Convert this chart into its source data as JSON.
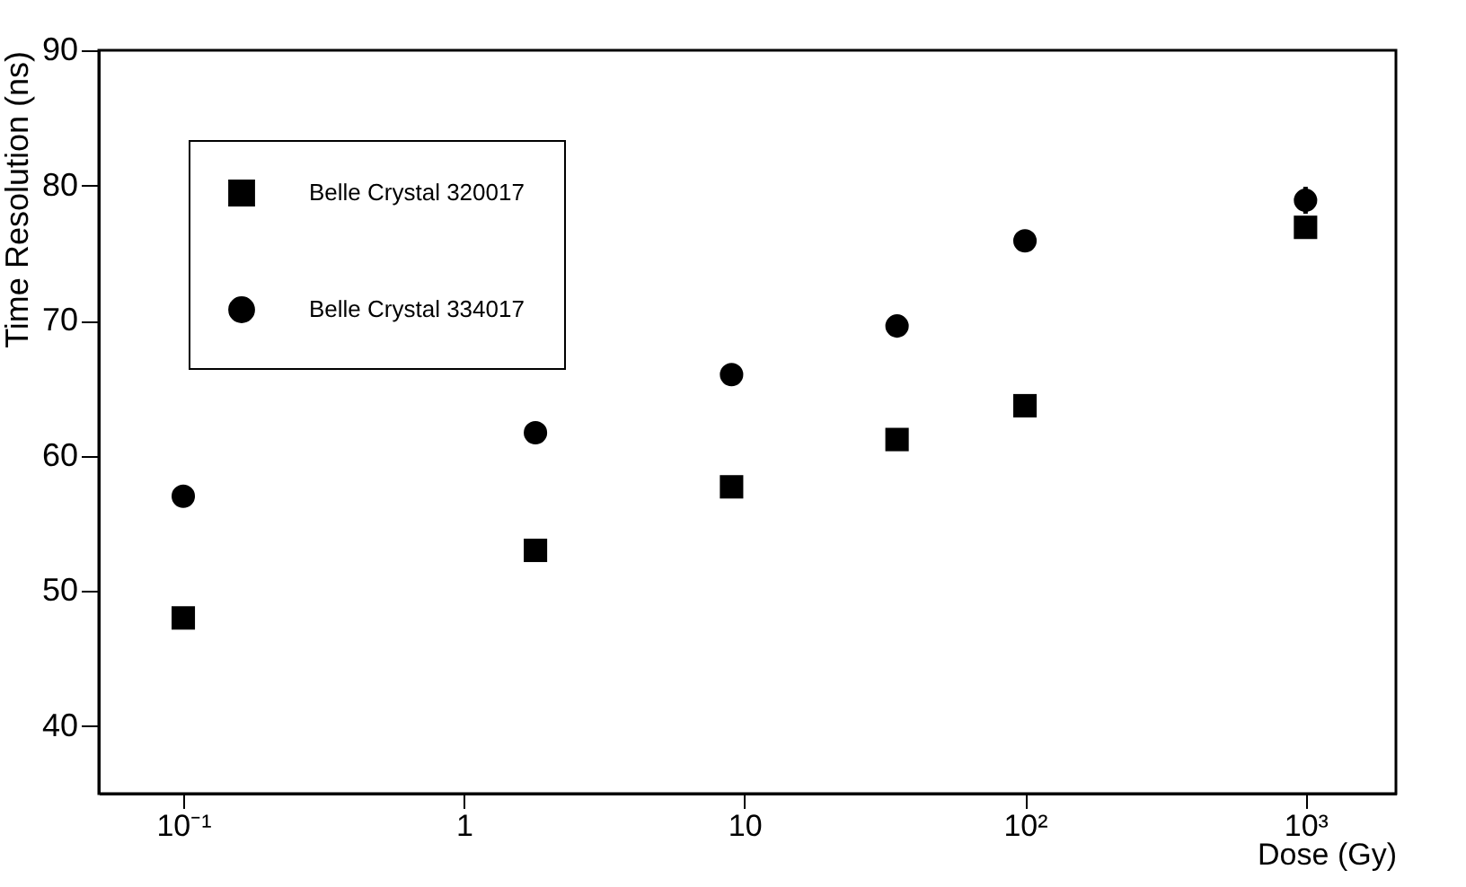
{
  "chart_data": {
    "type": "scatter",
    "xlabel": "Dose (Gy)",
    "ylabel": "Time Resolution (ns)",
    "log": "x",
    "grid": false,
    "legend": "top left",
    "xlim": [
      0.05,
      2100
    ],
    "ylim": [
      35,
      90
    ],
    "xticks": [
      {
        "value": 0.1,
        "label": "10⁻¹"
      },
      1,
      10,
      {
        "value": 100,
        "label": "10²"
      },
      {
        "value": 1000,
        "label": "10³"
      }
    ],
    "yticks": [
      40,
      50,
      60,
      70,
      80,
      90
    ],
    "series": [
      {
        "name": "Belle Crystal 320017",
        "color": "#000000",
        "marker": "square",
        "x": [
          0.1,
          1.8,
          9,
          35,
          100,
          1000
        ],
        "values": [
          48,
          53,
          57.7,
          61.2,
          63.7,
          76.9
        ],
        "errors": [
          0.6,
          0.5,
          null,
          null,
          null,
          null
        ]
      },
      {
        "name": "Belle Crystal 334017",
        "color": "#000000",
        "marker": "circle",
        "x": [
          0.1,
          1.8,
          9,
          35,
          100,
          1000
        ],
        "values": [
          57,
          61.7,
          66,
          69.6,
          75.9,
          78.9
        ],
        "errors": [
          0.7,
          null,
          null,
          null,
          null,
          1
        ]
      }
    ]
  }
}
